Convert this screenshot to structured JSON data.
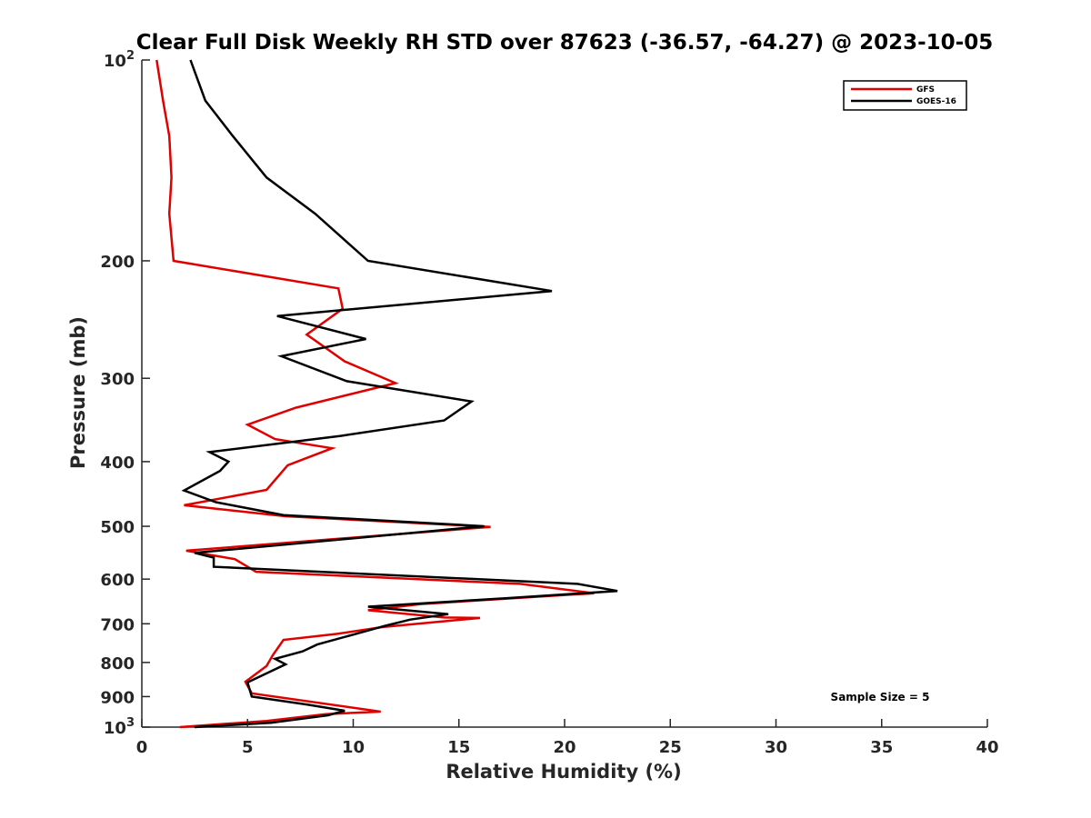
{
  "chart_data": {
    "type": "line",
    "title": "Clear Full Disk Weekly RH STD over 87623 (-36.57, -64.27) @ 2023-10-05",
    "xlabel": "Relative Humidity (%)",
    "ylabel": "Pressure (mb)",
    "xlim": [
      0,
      40
    ],
    "ylim": [
      100,
      1000
    ],
    "y_scale": "log",
    "y_reversed": true,
    "x_ticks": [
      "0",
      "5",
      "10",
      "15",
      "20",
      "25",
      "30",
      "35",
      "40"
    ],
    "y_ticks": [
      {
        "value": 100,
        "base": "10",
        "exp": "2"
      },
      {
        "value": 200,
        "label": "200"
      },
      {
        "value": 300,
        "label": "300"
      },
      {
        "value": 400,
        "label": "400"
      },
      {
        "value": 500,
        "label": "500"
      },
      {
        "value": 600,
        "label": "600"
      },
      {
        "value": 700,
        "label": "700"
      },
      {
        "value": 800,
        "label": "800"
      },
      {
        "value": 900,
        "label": "900"
      },
      {
        "value": 1000,
        "base": "10",
        "exp": "3"
      }
    ],
    "legend_position": "top-right",
    "annotation": "Sample Size = 5",
    "series": [
      {
        "name": "GFS",
        "color": "#e00000",
        "points": [
          [
            0.7,
            100
          ],
          [
            1.0,
            115
          ],
          [
            1.3,
            130
          ],
          [
            1.4,
            150
          ],
          [
            1.3,
            170
          ],
          [
            1.5,
            200
          ],
          [
            9.3,
            220
          ],
          [
            9.5,
            236
          ],
          [
            7.8,
            258
          ],
          [
            9.6,
            283
          ],
          [
            12.0,
            305
          ],
          [
            7.3,
            332
          ],
          [
            5.0,
            352
          ],
          [
            6.3,
            370
          ],
          [
            9.0,
            382
          ],
          [
            6.9,
            405
          ],
          [
            5.9,
            441
          ],
          [
            2.0,
            465
          ],
          [
            6.8,
            483
          ],
          [
            16.5,
            501
          ],
          [
            2.1,
            544
          ],
          [
            4.4,
            560
          ],
          [
            5.4,
            585
          ],
          [
            17.9,
            610
          ],
          [
            21.4,
            630
          ],
          [
            13.2,
            654
          ],
          [
            10.7,
            668
          ],
          [
            14.3,
            685
          ],
          [
            16.0,
            686
          ],
          [
            11.4,
            708
          ],
          [
            9.2,
            725
          ],
          [
            6.7,
            740
          ],
          [
            6.2,
            780
          ],
          [
            5.9,
            810
          ],
          [
            4.9,
            855
          ],
          [
            5.2,
            890
          ],
          [
            11.3,
            948
          ],
          [
            8.7,
            956
          ],
          [
            5.9,
            979
          ],
          [
            1.8,
            1000
          ]
        ]
      },
      {
        "name": "GOES-16",
        "color": "#000000",
        "points": [
          [
            2.3,
            100
          ],
          [
            3.0,
            115
          ],
          [
            4.3,
            130
          ],
          [
            5.9,
            150
          ],
          [
            8.2,
            170
          ],
          [
            10.7,
            200
          ],
          [
            19.4,
            222
          ],
          [
            6.4,
            242
          ],
          [
            10.6,
            262
          ],
          [
            6.6,
            278
          ],
          [
            9.7,
            303
          ],
          [
            15.6,
            325
          ],
          [
            14.3,
            347
          ],
          [
            9.4,
            366
          ],
          [
            3.2,
            387
          ],
          [
            4.1,
            400
          ],
          [
            3.7,
            413
          ],
          [
            2.0,
            442
          ],
          [
            3.5,
            460
          ],
          [
            6.7,
            481
          ],
          [
            16.2,
            500
          ],
          [
            2.5,
            548
          ],
          [
            3.4,
            557
          ],
          [
            3.4,
            575
          ],
          [
            20.6,
            610
          ],
          [
            22.5,
            625
          ],
          [
            17.2,
            641
          ],
          [
            10.7,
            660
          ],
          [
            14.5,
            677
          ],
          [
            12.7,
            690
          ],
          [
            11.5,
            705
          ],
          [
            8.3,
            752
          ],
          [
            7.6,
            770
          ],
          [
            6.3,
            790
          ],
          [
            6.8,
            805
          ],
          [
            5.0,
            857
          ],
          [
            5.2,
            900
          ],
          [
            7.8,
            925
          ],
          [
            9.6,
            945
          ],
          [
            8.8,
            960
          ],
          [
            6.1,
            985
          ],
          [
            2.5,
            1000
          ]
        ]
      }
    ]
  }
}
